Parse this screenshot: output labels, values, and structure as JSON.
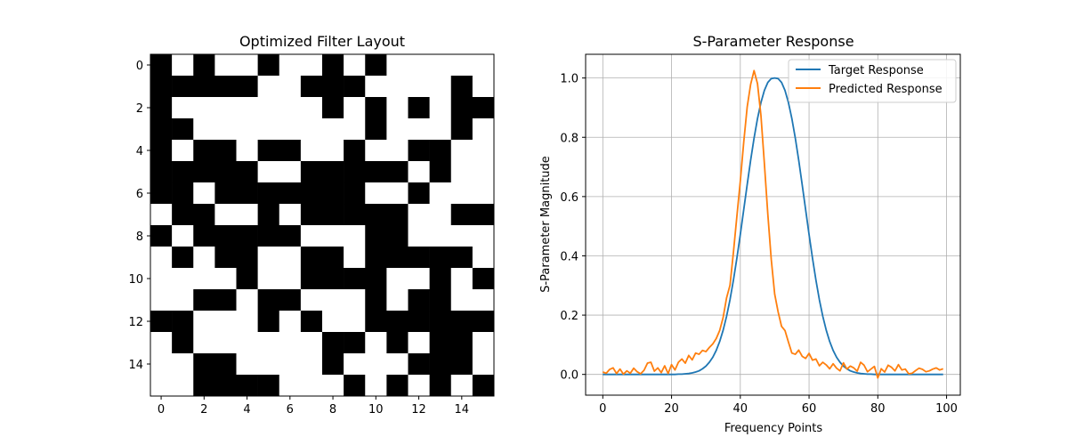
{
  "chart_data": [
    {
      "type": "heatmap",
      "title": "Optimized Filter Layout",
      "xlabel": "",
      "ylabel": "",
      "colormap": "binary (1 = black, 0 = white)",
      "x_ticks": [
        0,
        2,
        4,
        6,
        8,
        10,
        12,
        14
      ],
      "y_ticks": [
        0,
        2,
        4,
        6,
        8,
        10,
        12,
        14
      ],
      "grid": false,
      "matrix": [
        [
          1,
          0,
          1,
          0,
          0,
          1,
          0,
          0,
          1,
          0,
          1,
          0,
          0,
          0,
          0,
          0
        ],
        [
          1,
          1,
          1,
          1,
          1,
          0,
          0,
          1,
          1,
          1,
          0,
          0,
          0,
          0,
          1,
          0
        ],
        [
          1,
          0,
          0,
          0,
          0,
          0,
          0,
          0,
          1,
          0,
          1,
          0,
          1,
          0,
          1,
          1
        ],
        [
          1,
          1,
          0,
          0,
          0,
          0,
          0,
          0,
          0,
          0,
          1,
          0,
          0,
          0,
          1,
          0
        ],
        [
          1,
          0,
          1,
          1,
          0,
          1,
          1,
          0,
          0,
          1,
          0,
          0,
          1,
          1,
          0,
          0
        ],
        [
          1,
          1,
          1,
          1,
          1,
          0,
          0,
          1,
          1,
          1,
          1,
          1,
          0,
          1,
          0,
          0
        ],
        [
          1,
          1,
          0,
          1,
          1,
          1,
          1,
          1,
          1,
          1,
          0,
          0,
          1,
          0,
          0,
          0
        ],
        [
          0,
          1,
          1,
          0,
          0,
          1,
          0,
          1,
          1,
          1,
          1,
          1,
          0,
          0,
          1,
          1
        ],
        [
          1,
          0,
          1,
          1,
          1,
          1,
          1,
          0,
          0,
          0,
          1,
          1,
          0,
          0,
          0,
          0
        ],
        [
          0,
          1,
          0,
          1,
          1,
          0,
          0,
          1,
          1,
          0,
          1,
          1,
          1,
          1,
          1,
          0
        ],
        [
          0,
          0,
          0,
          0,
          1,
          0,
          0,
          1,
          1,
          1,
          1,
          0,
          0,
          1,
          0,
          1
        ],
        [
          0,
          0,
          1,
          1,
          0,
          1,
          1,
          0,
          0,
          0,
          1,
          0,
          1,
          1,
          0,
          0
        ],
        [
          1,
          1,
          0,
          0,
          0,
          1,
          0,
          1,
          0,
          0,
          1,
          1,
          1,
          1,
          1,
          1
        ],
        [
          0,
          1,
          0,
          0,
          0,
          0,
          0,
          0,
          1,
          1,
          0,
          1,
          0,
          1,
          1,
          0
        ],
        [
          0,
          0,
          1,
          1,
          0,
          0,
          0,
          0,
          1,
          0,
          0,
          0,
          1,
          1,
          1,
          0
        ],
        [
          0,
          0,
          1,
          1,
          1,
          1,
          0,
          0,
          0,
          1,
          0,
          1,
          0,
          1,
          0,
          1
        ]
      ]
    },
    {
      "type": "line",
      "title": "S-Parameter Response",
      "xlabel": "Frequency Points",
      "ylabel": "S-Parameter Magnitude",
      "xlim": [
        -5,
        104
      ],
      "ylim": [
        -0.07,
        1.08
      ],
      "x_ticks": [
        0,
        20,
        40,
        60,
        80,
        100
      ],
      "y_ticks": [
        0.0,
        0.2,
        0.4,
        0.6,
        0.8,
        1.0
      ],
      "grid": true,
      "legend_position": "top-right",
      "series": [
        {
          "name": "Target Response",
          "color": "#1f77b4",
          "x": [
            0,
            1,
            2,
            3,
            4,
            5,
            6,
            7,
            8,
            9,
            10,
            11,
            12,
            13,
            14,
            15,
            16,
            17,
            18,
            19,
            20,
            21,
            22,
            23,
            24,
            25,
            26,
            27,
            28,
            29,
            30,
            31,
            32,
            33,
            34,
            35,
            36,
            37,
            38,
            39,
            40,
            41,
            42,
            43,
            44,
            45,
            46,
            47,
            48,
            49,
            50,
            51,
            52,
            53,
            54,
            55,
            56,
            57,
            58,
            59,
            60,
            61,
            62,
            63,
            64,
            65,
            66,
            67,
            68,
            69,
            70,
            71,
            72,
            73,
            74,
            75,
            76,
            77,
            78,
            79,
            80,
            81,
            82,
            83,
            84,
            85,
            86,
            87,
            88,
            89,
            90,
            91,
            92,
            93,
            94,
            95,
            96,
            97,
            98,
            99
          ],
          "values": [
            0,
            0,
            0,
            0,
            0,
            0,
            0,
            0,
            0,
            0,
            0,
            0,
            0,
            0,
            0,
            0,
            0,
            0,
            0,
            0,
            0,
            0,
            0.001,
            0.001,
            0.002,
            0.003,
            0.005,
            0.008,
            0.012,
            0.019,
            0.028,
            0.041,
            0.058,
            0.081,
            0.111,
            0.149,
            0.196,
            0.252,
            0.318,
            0.392,
            0.472,
            0.556,
            0.64,
            0.722,
            0.797,
            0.863,
            0.917,
            0.958,
            0.985,
            0.998,
            1.0,
            0.998,
            0.985,
            0.958,
            0.917,
            0.863,
            0.797,
            0.722,
            0.64,
            0.556,
            0.472,
            0.392,
            0.318,
            0.252,
            0.196,
            0.149,
            0.111,
            0.081,
            0.058,
            0.041,
            0.028,
            0.019,
            0.012,
            0.008,
            0.005,
            0.003,
            0.002,
            0.001,
            0.001,
            0,
            0,
            0,
            0,
            0,
            0,
            0,
            0,
            0,
            0,
            0,
            0,
            0,
            0,
            0,
            0,
            0,
            0,
            0,
            0,
            0
          ]
        },
        {
          "name": "Predicted Response",
          "color": "#ff7f0e",
          "x": [
            0,
            1,
            2,
            3,
            4,
            5,
            6,
            7,
            8,
            9,
            10,
            11,
            12,
            13,
            14,
            15,
            16,
            17,
            18,
            19,
            20,
            21,
            22,
            23,
            24,
            25,
            26,
            27,
            28,
            29,
            30,
            31,
            32,
            33,
            34,
            35,
            36,
            37,
            38,
            39,
            40,
            41,
            42,
            43,
            44,
            45,
            46,
            47,
            48,
            49,
            50,
            51,
            52,
            53,
            54,
            55,
            56,
            57,
            58,
            59,
            60,
            61,
            62,
            63,
            64,
            65,
            66,
            67,
            68,
            69,
            70,
            71,
            72,
            73,
            74,
            75,
            76,
            77,
            78,
            79,
            80,
            81,
            82,
            83,
            84,
            85,
            86,
            87,
            88,
            89,
            90,
            91,
            92,
            93,
            94,
            95,
            96,
            97,
            98,
            99
          ],
          "values": [
            0.008,
            0.004,
            0.017,
            0.022,
            0.003,
            0.018,
            0.001,
            0.012,
            0.004,
            0.021,
            0.009,
            0.002,
            0.014,
            0.038,
            0.041,
            0.011,
            0.022,
            0.006,
            0.029,
            0.003,
            0.033,
            0.015,
            0.041,
            0.052,
            0.038,
            0.064,
            0.049,
            0.072,
            0.068,
            0.081,
            0.077,
            0.091,
            0.103,
            0.121,
            0.148,
            0.192,
            0.258,
            0.301,
            0.412,
            0.533,
            0.652,
            0.784,
            0.902,
            0.978,
            1.025,
            0.981,
            0.874,
            0.712,
            0.541,
            0.388,
            0.271,
            0.211,
            0.162,
            0.148,
            0.109,
            0.072,
            0.068,
            0.082,
            0.061,
            0.054,
            0.071,
            0.048,
            0.052,
            0.029,
            0.041,
            0.032,
            0.019,
            0.036,
            0.021,
            0.012,
            0.039,
            0.018,
            0.028,
            0.022,
            0.011,
            0.041,
            0.031,
            0.009,
            0.018,
            0.027,
            -0.012,
            0.019,
            0.008,
            0.031,
            0.024,
            0.012,
            0.033,
            0.015,
            0.018,
            0.002,
            0.004,
            0.013,
            0.021,
            0.017,
            0.009,
            0.012,
            0.018,
            0.022,
            0.015,
            0.019
          ]
        }
      ]
    }
  ]
}
